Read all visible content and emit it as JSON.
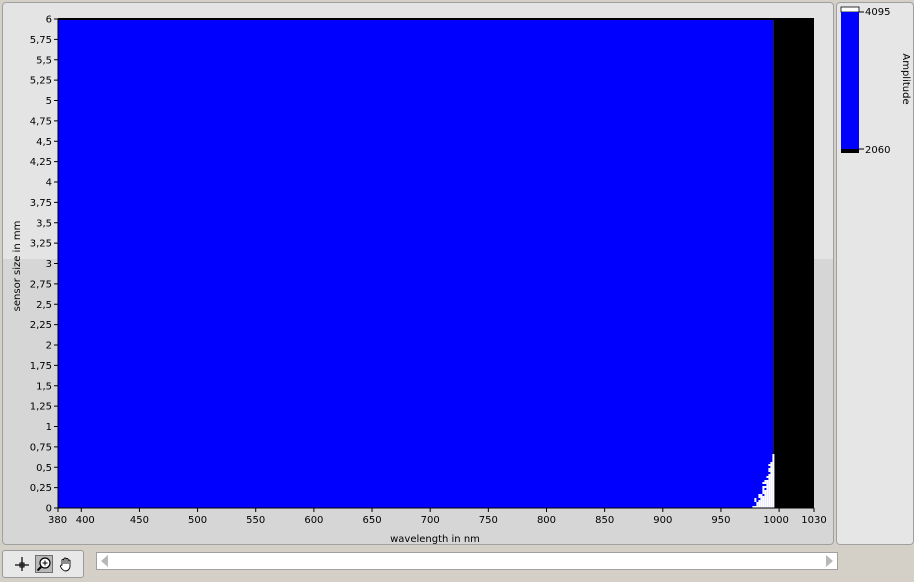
{
  "chart_data": {
    "type": "heatmap",
    "xlabel": "wavelength in nm",
    "ylabel": "sensor size in mm",
    "xlim": [
      380,
      1030
    ],
    "ylim": [
      0,
      6
    ],
    "x_ticks": [
      "380",
      "400",
      "450",
      "500",
      "550",
      "600",
      "650",
      "700",
      "750",
      "800",
      "850",
      "900",
      "950",
      "1000",
      "1030"
    ],
    "y_ticks": [
      "0",
      "0,25",
      "0,5",
      "0,75",
      "1",
      "1,25",
      "1,5",
      "1,75",
      "2",
      "2,25",
      "2,5",
      "2,75",
      "3",
      "3,25",
      "3,5",
      "3,75",
      "4",
      "4,25",
      "4,5",
      "4,75",
      "5",
      "5,25",
      "5,5",
      "5,75",
      "6"
    ],
    "regions": [
      {
        "x_range": [
          380,
          995
        ],
        "y_range": [
          0,
          6
        ],
        "level": "mid",
        "color": "#0000ff"
      },
      {
        "x_range": [
          995,
          1030
        ],
        "y_range": [
          0,
          6
        ],
        "level": "low",
        "color": "#000000"
      },
      {
        "x_range": [
          965,
          995
        ],
        "y_range": [
          0,
          0.65
        ],
        "level": "saturated",
        "color": "#ffffff"
      }
    ],
    "colorbar": {
      "label": "Amplitude",
      "min_label": "2060",
      "max_label": "4095",
      "low_color": "#000000",
      "mid_color": "#0000ff",
      "high_color": "#ffffff"
    }
  },
  "toolbar": {
    "icons": [
      "crosshair-icon",
      "zoom-icon",
      "pan-hand-icon"
    ],
    "selected": "zoom-icon"
  },
  "colors": {
    "plot_bg": "#0000ff",
    "panel_bg": "#e4e4e4"
  }
}
